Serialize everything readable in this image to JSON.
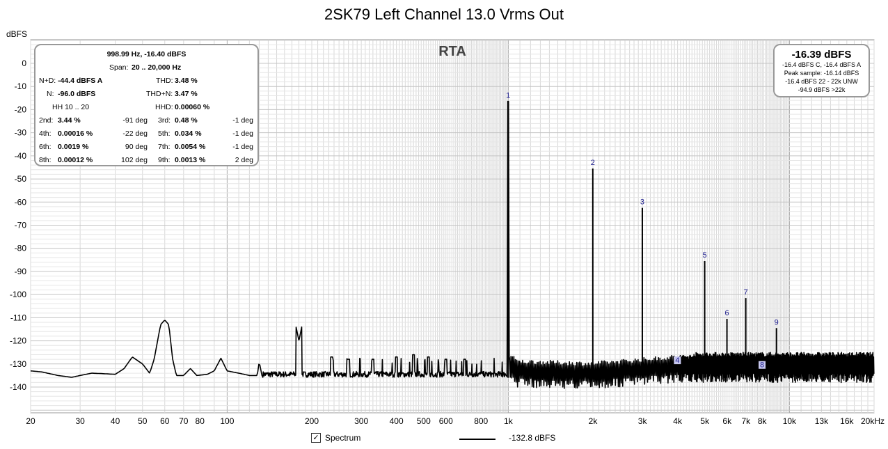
{
  "title": "2SK79 Left Channel 13.0 Vrms Out",
  "rta_label": "RTA",
  "colors": {
    "trace": "#000000",
    "grid": "#d8d8d8",
    "grid_major": "#a8a8a8",
    "marker": "#1a1a8c"
  },
  "info": {
    "header": "998.99 Hz, -16.40 dBFS",
    "span_label": "Span:",
    "span_value": "20 .. 20,000 Hz",
    "nd_label": "N+D:",
    "nd_value": "-44.4 dBFS A",
    "thd_label": "THD:",
    "thd_value": "3.48 %",
    "n_label": "N:",
    "n_value": "-96.0 dBFS",
    "thdn_label": "THD+N:",
    "thdn_value": "3.47 %",
    "hh_label": "HH 10 .. 20",
    "hhd_label": "HHD:",
    "hhd_value": "0.00060 %",
    "harmonics": [
      {
        "l1": "2nd:",
        "v1": "3.44 %",
        "p1": "-91 deg",
        "l2": "3rd:",
        "v2": "0.48 %",
        "p2": "-1 deg"
      },
      {
        "l1": "4th:",
        "v1": "0.00016 %",
        "p1": "-22 deg",
        "l2": "5th:",
        "v2": "0.034 %",
        "p2": "-1 deg"
      },
      {
        "l1": "6th:",
        "v1": "0.0019 %",
        "p1": "90 deg",
        "l2": "7th:",
        "v2": "0.0054 %",
        "p2": "-1 deg"
      },
      {
        "l1": "8th:",
        "v1": "0.00012 %",
        "p1": "102 deg",
        "l2": "9th:",
        "v2": "0.0013 %",
        "p2": "2 deg"
      }
    ]
  },
  "peak": {
    "big": "-16.39 dBFS",
    "l1": "-16.4 dBFS C, -16.4 dBFS A",
    "l2": "Peak sample: -16.14 dBFS",
    "l3": "-16.4 dBFS 22 - 22k UNW",
    "l4": "-94.9 dBFS >22k"
  },
  "legend": {
    "spectrum_label": "Spectrum",
    "spectrum_checked": "✓",
    "trace_label": "-132.8 dBFS"
  },
  "chart_data": {
    "type": "line",
    "title": "2SK79 Left Channel 13.0 Vrms Out",
    "xlabel": "",
    "ylabel": "dBFS",
    "xscale": "log",
    "xlim": [
      20,
      20000
    ],
    "ylim": [
      -150,
      10
    ],
    "grid": true,
    "x_tick_labels": [
      "20",
      "30",
      "40",
      "50",
      "60",
      "70",
      "80",
      "100",
      "200",
      "300",
      "400",
      "500",
      "600",
      "800",
      "1k",
      "2k",
      "3k",
      "4k",
      "5k",
      "6k",
      "7k",
      "8k",
      "10k",
      "13k",
      "16k",
      "20kHz"
    ],
    "x_tick_values": [
      20,
      30,
      40,
      50,
      60,
      70,
      80,
      100,
      200,
      300,
      400,
      500,
      600,
      800,
      1000,
      2000,
      3000,
      4000,
      5000,
      6000,
      7000,
      8000,
      10000,
      13000,
      16000,
      20000
    ],
    "y_ticks": [
      0,
      -10,
      -20,
      -30,
      -40,
      -50,
      -60,
      -70,
      -80,
      -90,
      -100,
      -110,
      -120,
      -130,
      -140
    ],
    "series": [
      {
        "name": "Spectrum",
        "noise_floor_low": [
          [
            20,
            -133
          ],
          [
            22,
            -133.5
          ],
          [
            25,
            -135
          ],
          [
            28,
            -135.8
          ],
          [
            30,
            -135
          ],
          [
            33,
            -134
          ],
          [
            36,
            -134.2
          ],
          [
            40,
            -134.5
          ],
          [
            43,
            -132
          ],
          [
            46,
            -127
          ],
          [
            50,
            -130
          ],
          [
            53,
            -134
          ],
          [
            55,
            -128
          ],
          [
            58,
            -113
          ],
          [
            60,
            -111
          ],
          [
            62,
            -113
          ],
          [
            64,
            -128
          ],
          [
            66,
            -135
          ],
          [
            70,
            -135
          ],
          [
            74,
            -132
          ],
          [
            78,
            -135
          ],
          [
            85,
            -134.5
          ],
          [
            90,
            -133
          ],
          [
            95,
            -127.5
          ],
          [
            100,
            -133
          ],
          [
            110,
            -134
          ],
          [
            120,
            -135
          ],
          [
            128,
            -135
          ],
          [
            130,
            -129
          ],
          [
            133,
            -135
          ]
        ],
        "noise_floor_high": [
          [
            1050,
            -133
          ],
          [
            2000,
            -134
          ],
          [
            4000,
            -131
          ],
          [
            20000,
            -131
          ]
        ],
        "harmonic_peaks": [
          {
            "label": "1",
            "x": 999,
            "y": -16.4
          },
          {
            "label": "2",
            "x": 1998,
            "y": -45.5
          },
          {
            "label": "3",
            "x": 2997,
            "y": -62.5
          },
          {
            "label": "4",
            "x": 3996,
            "y": -131
          },
          {
            "label": "5",
            "x": 4995,
            "y": -85.5
          },
          {
            "label": "6",
            "x": 5994,
            "y": -110.5
          },
          {
            "label": "7",
            "x": 6993,
            "y": -101.5
          },
          {
            "label": "8",
            "x": 7992,
            "y": -133
          },
          {
            "label": "9",
            "x": 8991,
            "y": -114.5
          }
        ],
        "spurs": [
          [
            180,
            -120
          ],
          [
            235,
            -127
          ],
          [
            270,
            -128
          ],
          [
            330,
            -128
          ],
          [
            400,
            -127
          ],
          [
            460,
            -126
          ],
          [
            520,
            -127
          ],
          [
            600,
            -128
          ],
          [
            700,
            -128
          ]
        ]
      }
    ]
  }
}
